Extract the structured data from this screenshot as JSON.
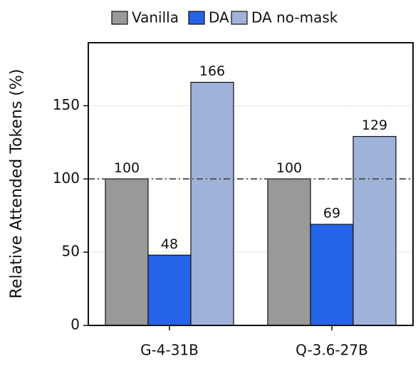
{
  "chart_data": {
    "type": "bar",
    "y_label": "Relative Attended Tokens (%)",
    "categories": [
      "G-4-31B",
      "Q-3.6-27B"
    ],
    "series": [
      {
        "name": "Vanilla",
        "color": "#999999",
        "values": [
          100,
          100
        ]
      },
      {
        "name": "DA",
        "color": "#2563e8",
        "values": [
          48,
          69
        ]
      },
      {
        "name": "DA no-mask",
        "color": "#9fb3da",
        "values": [
          166,
          129
        ]
      }
    ],
    "ylim": [
      0,
      193
    ],
    "yticks": [
      0,
      50,
      100,
      150
    ],
    "grid": true,
    "reference_line": 100,
    "legend": "top"
  }
}
